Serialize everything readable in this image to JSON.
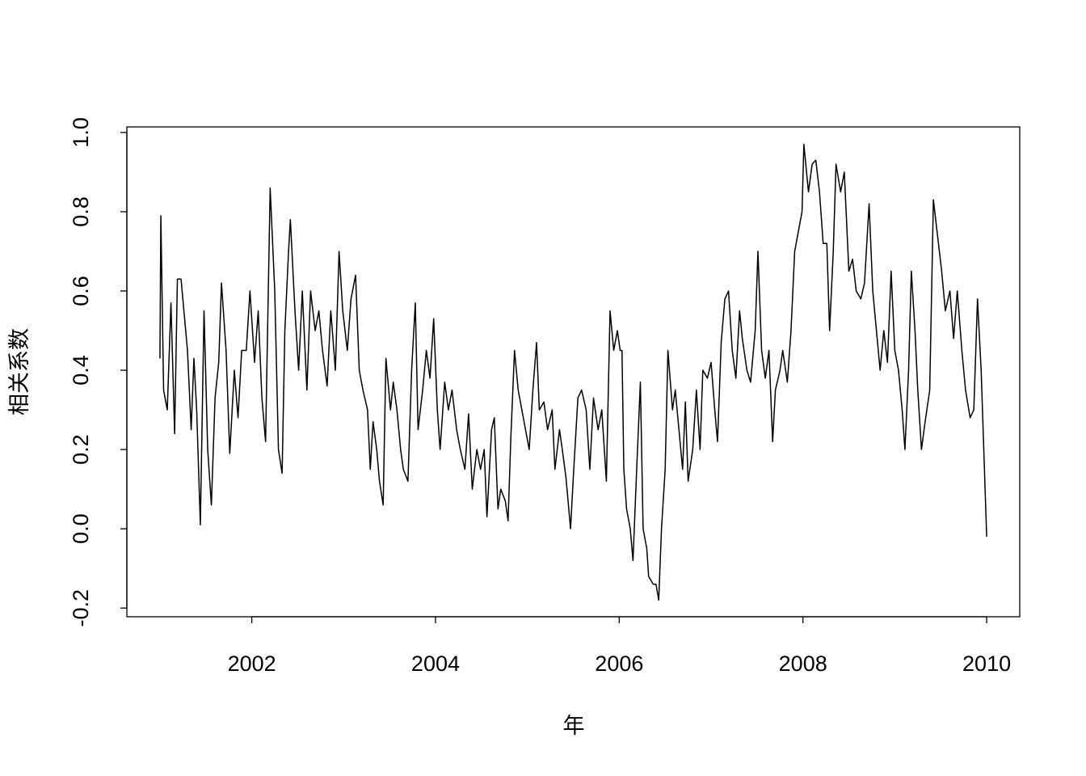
{
  "chart_data": {
    "type": "line",
    "xlabel": "年",
    "ylabel": "相关系数",
    "xlim": [
      2000.64,
      2010.36
    ],
    "ylim": [
      -0.222,
      1.014
    ],
    "xticks": [
      2002,
      2004,
      2006,
      2008,
      2010
    ],
    "yticks": [
      -0.2,
      {
        "value": 0,
        "label": "0.0"
      },
      0.2,
      0.4,
      0.6,
      0.8,
      {
        "value": 1,
        "label": "1.0"
      }
    ],
    "color": "#000000",
    "x": [
      2001.0,
      2001.01,
      2001.04,
      2001.08,
      2001.12,
      2001.16,
      2001.19,
      2001.23,
      2001.3,
      2001.34,
      2001.37,
      2001.4,
      2001.44,
      2001.48,
      2001.52,
      2001.56,
      2001.6,
      2001.64,
      2001.67,
      2001.72,
      2001.76,
      2001.81,
      2001.85,
      2001.89,
      2001.94,
      2001.98,
      2002.03,
      2002.07,
      2002.11,
      2002.15,
      2002.2,
      2002.25,
      2002.29,
      2002.33,
      2002.36,
      2002.4,
      2002.42,
      2002.47,
      2002.51,
      2002.55,
      2002.6,
      2002.64,
      2002.69,
      2002.73,
      2002.77,
      2002.82,
      2002.86,
      2002.91,
      2002.95,
      2002.99,
      2003.04,
      2003.08,
      2003.13,
      2003.17,
      2003.21,
      2003.26,
      2003.29,
      2003.32,
      2003.36,
      2003.39,
      2003.43,
      2003.46,
      2003.51,
      2003.54,
      2003.58,
      2003.62,
      2003.65,
      2003.7,
      2003.74,
      2003.78,
      2003.81,
      2003.86,
      2003.9,
      2003.94,
      2003.98,
      2004.02,
      2004.05,
      2004.1,
      2004.14,
      2004.18,
      2004.23,
      2004.27,
      2004.32,
      2004.36,
      2004.4,
      2004.45,
      2004.49,
      2004.53,
      2004.56,
      2004.61,
      2004.64,
      2004.68,
      2004.71,
      2004.76,
      2004.79,
      2004.82,
      2004.86,
      2004.9,
      2004.94,
      2004.98,
      2005.02,
      2005.06,
      2005.1,
      2005.13,
      2005.18,
      2005.22,
      2005.27,
      2005.3,
      2005.35,
      2005.38,
      2005.42,
      2005.47,
      2005.5,
      2005.55,
      2005.59,
      2005.64,
      2005.68,
      2005.72,
      2005.77,
      2005.81,
      2005.86,
      2005.9,
      2005.94,
      2005.98,
      2006.01,
      2006.03,
      2006.05,
      2006.08,
      2006.12,
      2006.15,
      2006.19,
      2006.23,
      2006.26,
      2006.3,
      2006.32,
      2006.37,
      2006.4,
      2006.43,
      2006.46,
      2006.5,
      2006.53,
      2006.58,
      2006.61,
      2006.65,
      2006.69,
      2006.72,
      2006.75,
      2006.8,
      2006.84,
      2006.88,
      2006.91,
      2006.96,
      2007.0,
      2007.04,
      2007.07,
      2007.11,
      2007.15,
      2007.19,
      2007.23,
      2007.27,
      2007.31,
      2007.34,
      2007.39,
      2007.43,
      2007.48,
      2007.51,
      2007.55,
      2007.59,
      2007.63,
      2007.67,
      2007.7,
      2007.75,
      2007.78,
      2007.83,
      2007.87,
      2007.91,
      2007.95,
      2007.99,
      2008.01,
      2008.06,
      2008.1,
      2008.14,
      2008.18,
      2008.22,
      2008.26,
      2008.29,
      2008.33,
      2008.36,
      2008.41,
      2008.45,
      2008.5,
      2008.54,
      2008.58,
      2008.63,
      2008.67,
      2008.72,
      2008.76,
      2008.8,
      2008.84,
      2008.88,
      2008.92,
      2008.96,
      2009.0,
      2009.04,
      2009.08,
      2009.11,
      2009.15,
      2009.18,
      2009.22,
      2009.25,
      2009.29,
      2009.33,
      2009.38,
      2009.42,
      2009.46,
      2009.51,
      2009.55,
      2009.6,
      2009.64,
      2009.68,
      2009.73,
      2009.77,
      2009.82,
      2009.86,
      2009.9,
      2009.94,
      2010.0
    ],
    "values": [
      0.43,
      0.79,
      0.35,
      0.3,
      0.57,
      0.24,
      0.63,
      0.63,
      0.45,
      0.25,
      0.43,
      0.3,
      0.01,
      0.55,
      0.2,
      0.06,
      0.33,
      0.42,
      0.62,
      0.45,
      0.19,
      0.4,
      0.28,
      0.45,
      0.45,
      0.6,
      0.42,
      0.55,
      0.33,
      0.22,
      0.86,
      0.6,
      0.2,
      0.14,
      0.5,
      0.7,
      0.78,
      0.55,
      0.4,
      0.6,
      0.35,
      0.6,
      0.5,
      0.55,
      0.45,
      0.36,
      0.55,
      0.4,
      0.7,
      0.55,
      0.45,
      0.58,
      0.64,
      0.4,
      0.35,
      0.3,
      0.15,
      0.27,
      0.2,
      0.12,
      0.06,
      0.43,
      0.3,
      0.37,
      0.3,
      0.2,
      0.15,
      0.12,
      0.4,
      0.57,
      0.25,
      0.35,
      0.45,
      0.38,
      0.53,
      0.3,
      0.2,
      0.37,
      0.3,
      0.35,
      0.25,
      0.2,
      0.15,
      0.29,
      0.1,
      0.2,
      0.15,
      0.2,
      0.03,
      0.25,
      0.28,
      0.05,
      0.1,
      0.07,
      0.02,
      0.23,
      0.45,
      0.35,
      0.3,
      0.25,
      0.2,
      0.35,
      0.47,
      0.3,
      0.32,
      0.25,
      0.3,
      0.15,
      0.25,
      0.2,
      0.13,
      0.0,
      0.13,
      0.33,
      0.35,
      0.3,
      0.15,
      0.33,
      0.25,
      0.3,
      0.12,
      0.55,
      0.45,
      0.5,
      0.45,
      0.45,
      0.15,
      0.05,
      0.0,
      -0.08,
      0.15,
      0.37,
      0.0,
      -0.05,
      -0.12,
      -0.14,
      -0.14,
      -0.18,
      0.0,
      0.15,
      0.45,
      0.3,
      0.35,
      0.25,
      0.15,
      0.32,
      0.12,
      0.2,
      0.35,
      0.2,
      0.4,
      0.38,
      0.42,
      0.3,
      0.22,
      0.47,
      0.58,
      0.6,
      0.45,
      0.38,
      0.55,
      0.48,
      0.4,
      0.37,
      0.5,
      0.7,
      0.45,
      0.38,
      0.45,
      0.22,
      0.35,
      0.4,
      0.45,
      0.37,
      0.5,
      0.7,
      0.75,
      0.8,
      0.97,
      0.85,
      0.92,
      0.93,
      0.85,
      0.72,
      0.72,
      0.5,
      0.7,
      0.92,
      0.85,
      0.9,
      0.65,
      0.68,
      0.6,
      0.58,
      0.62,
      0.82,
      0.6,
      0.5,
      0.4,
      0.5,
      0.42,
      0.65,
      0.45,
      0.4,
      0.3,
      0.2,
      0.4,
      0.65,
      0.5,
      0.35,
      0.2,
      0.27,
      0.35,
      0.83,
      0.75,
      0.65,
      0.55,
      0.6,
      0.48,
      0.6,
      0.45,
      0.35,
      0.28,
      0.3,
      0.58,
      0.4,
      -0.02
    ]
  }
}
